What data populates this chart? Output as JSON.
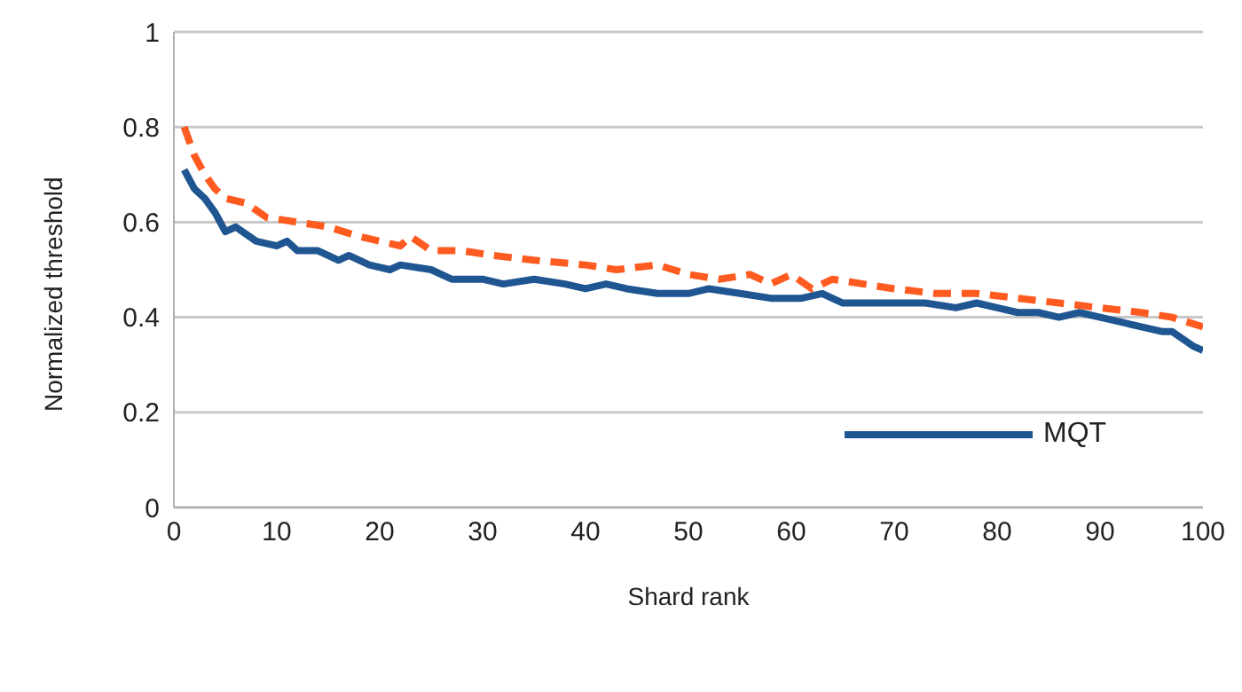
{
  "chart_data": {
    "type": "line",
    "xlabel": "Shard rank",
    "ylabel": "Normalized threshold",
    "xlim": [
      0,
      100
    ],
    "xticks": [
      0,
      10,
      20,
      30,
      40,
      50,
      60,
      70,
      80,
      90,
      100
    ],
    "ylim": [
      0,
      1
    ],
    "yticks": [
      0,
      0.2,
      0.4,
      0.6,
      0.8,
      1
    ],
    "grid": "y",
    "legend": "bottom right",
    "marker": "none",
    "series": [
      {
        "name": "MQT",
        "color": "#1f5591",
        "line_style": "solid",
        "x": [
          1,
          2,
          3,
          4,
          5,
          6,
          8,
          10,
          11,
          12,
          14,
          16,
          17,
          19,
          21,
          22,
          25,
          27,
          30,
          32,
          35,
          38,
          40,
          42,
          44,
          47,
          50,
          52,
          55,
          58,
          61,
          63,
          65,
          68,
          70,
          73,
          76,
          78,
          80,
          82,
          84,
          86,
          88,
          90,
          92,
          94,
          96,
          97,
          99,
          100
        ],
        "values": [
          0.71,
          0.67,
          0.65,
          0.62,
          0.58,
          0.59,
          0.56,
          0.55,
          0.56,
          0.54,
          0.54,
          0.52,
          0.53,
          0.51,
          0.5,
          0.51,
          0.5,
          0.48,
          0.48,
          0.47,
          0.48,
          0.47,
          0.46,
          0.47,
          0.46,
          0.45,
          0.45,
          0.46,
          0.45,
          0.44,
          0.44,
          0.45,
          0.43,
          0.43,
          0.43,
          0.43,
          0.42,
          0.43,
          0.42,
          0.41,
          0.41,
          0.4,
          0.41,
          0.4,
          0.39,
          0.38,
          0.37,
          0.37,
          0.34,
          0.33
        ]
      },
      {
        "color": "#ff5a1f",
        "line_style": "dashed",
        "x": [
          1,
          2,
          3,
          4,
          5,
          7,
          9,
          12,
          15,
          18,
          20,
          22,
          23,
          25,
          28,
          31,
          35,
          40,
          43,
          47,
          50,
          53,
          56,
          58,
          60,
          62,
          64,
          67,
          70,
          74,
          78,
          82,
          86,
          90,
          94,
          97,
          100
        ],
        "values": [
          0.8,
          0.74,
          0.7,
          0.67,
          0.65,
          0.64,
          0.61,
          0.6,
          0.59,
          0.57,
          0.56,
          0.55,
          0.57,
          0.54,
          0.54,
          0.53,
          0.52,
          0.51,
          0.5,
          0.51,
          0.49,
          0.48,
          0.49,
          0.47,
          0.49,
          0.46,
          0.48,
          0.47,
          0.46,
          0.45,
          0.45,
          0.44,
          0.43,
          0.42,
          0.41,
          0.4,
          0.38
        ]
      }
    ]
  }
}
